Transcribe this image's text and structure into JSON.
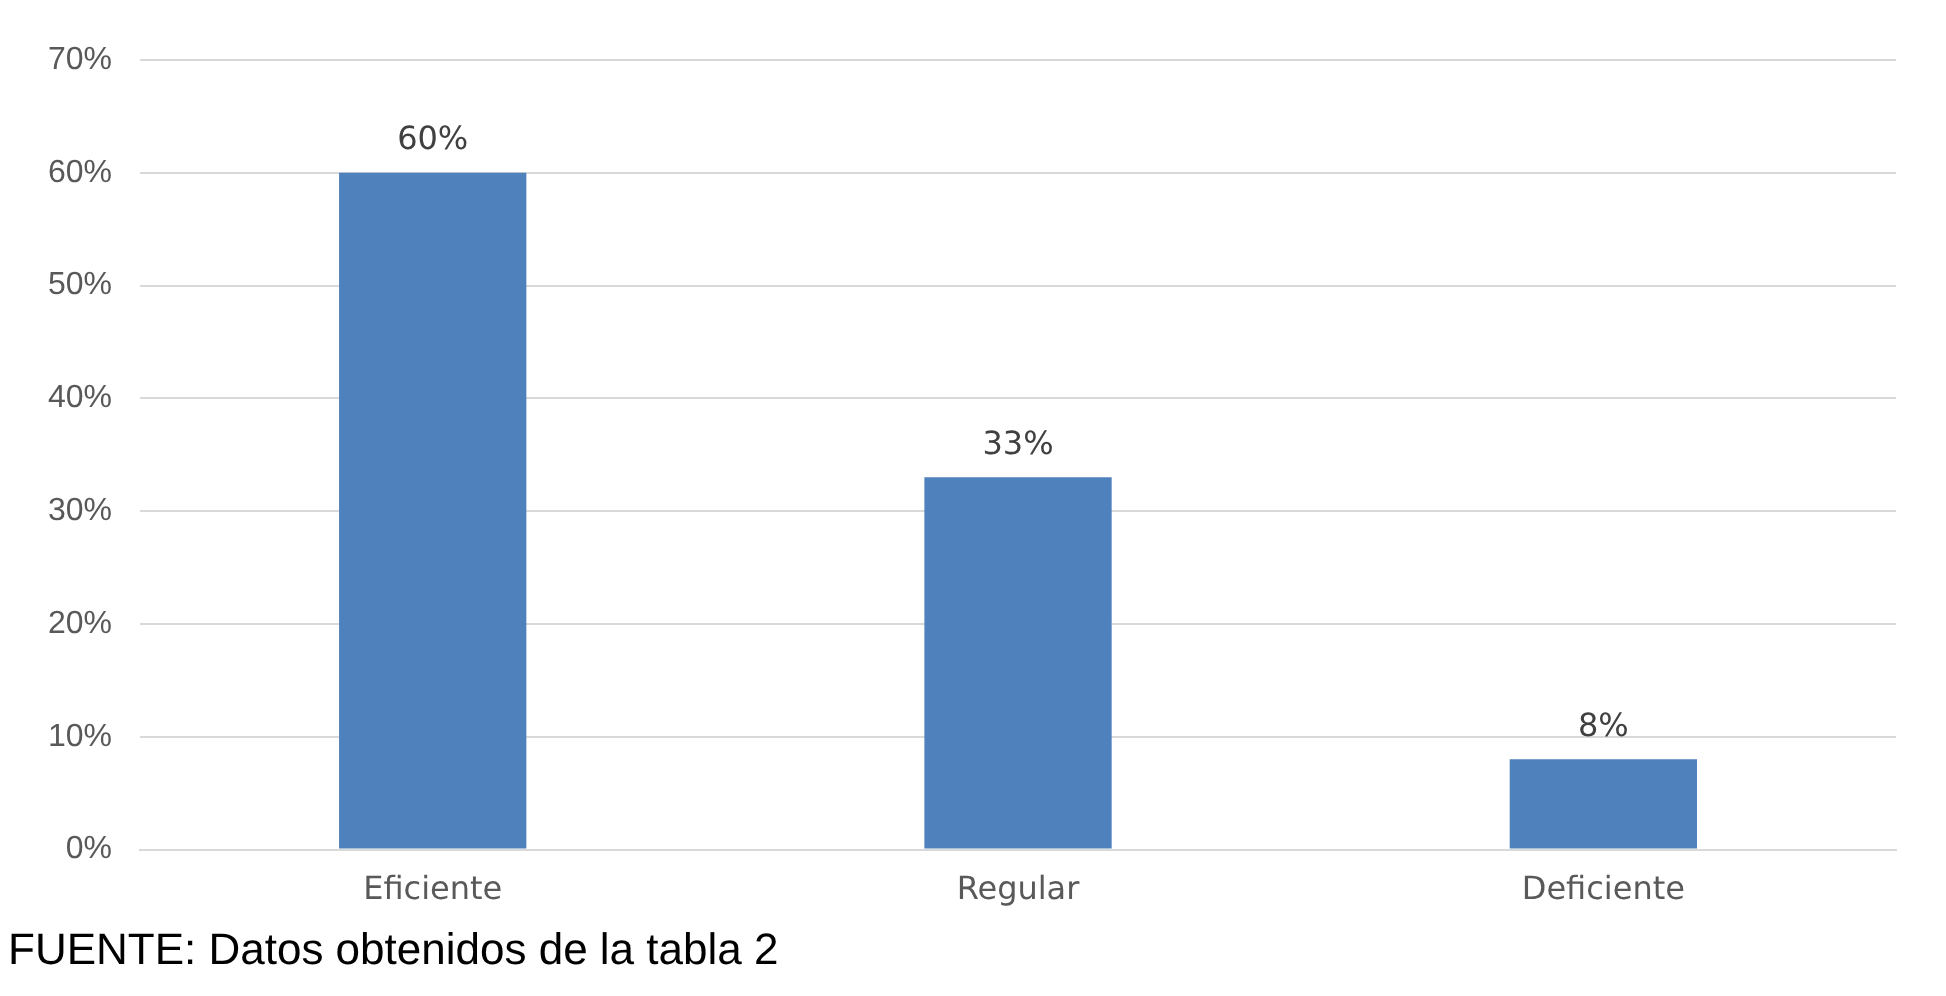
{
  "chart_data": {
    "type": "bar",
    "categories": [
      "Eficiente",
      "Regular",
      "Deficiente"
    ],
    "values": [
      60,
      33,
      8
    ],
    "color": "#4f81bd",
    "value_labels": [
      "60%",
      "33%",
      "8%"
    ],
    "ylim": [
      0,
      70
    ],
    "yticks": [
      {
        "value": 0,
        "label": "0%"
      },
      {
        "value": 10,
        "label": "10%"
      },
      {
        "value": 20,
        "label": "20%"
      },
      {
        "value": 30,
        "label": "30%"
      },
      {
        "value": 40,
        "label": "40%"
      },
      {
        "value": 50,
        "label": "50%"
      },
      {
        "value": 60,
        "label": "60%"
      },
      {
        "value": 70,
        "label": "70%"
      }
    ],
    "grid": "y",
    "annotations": [
      "FUENTE: Datos obtenidos de la tabla  2"
    ]
  }
}
